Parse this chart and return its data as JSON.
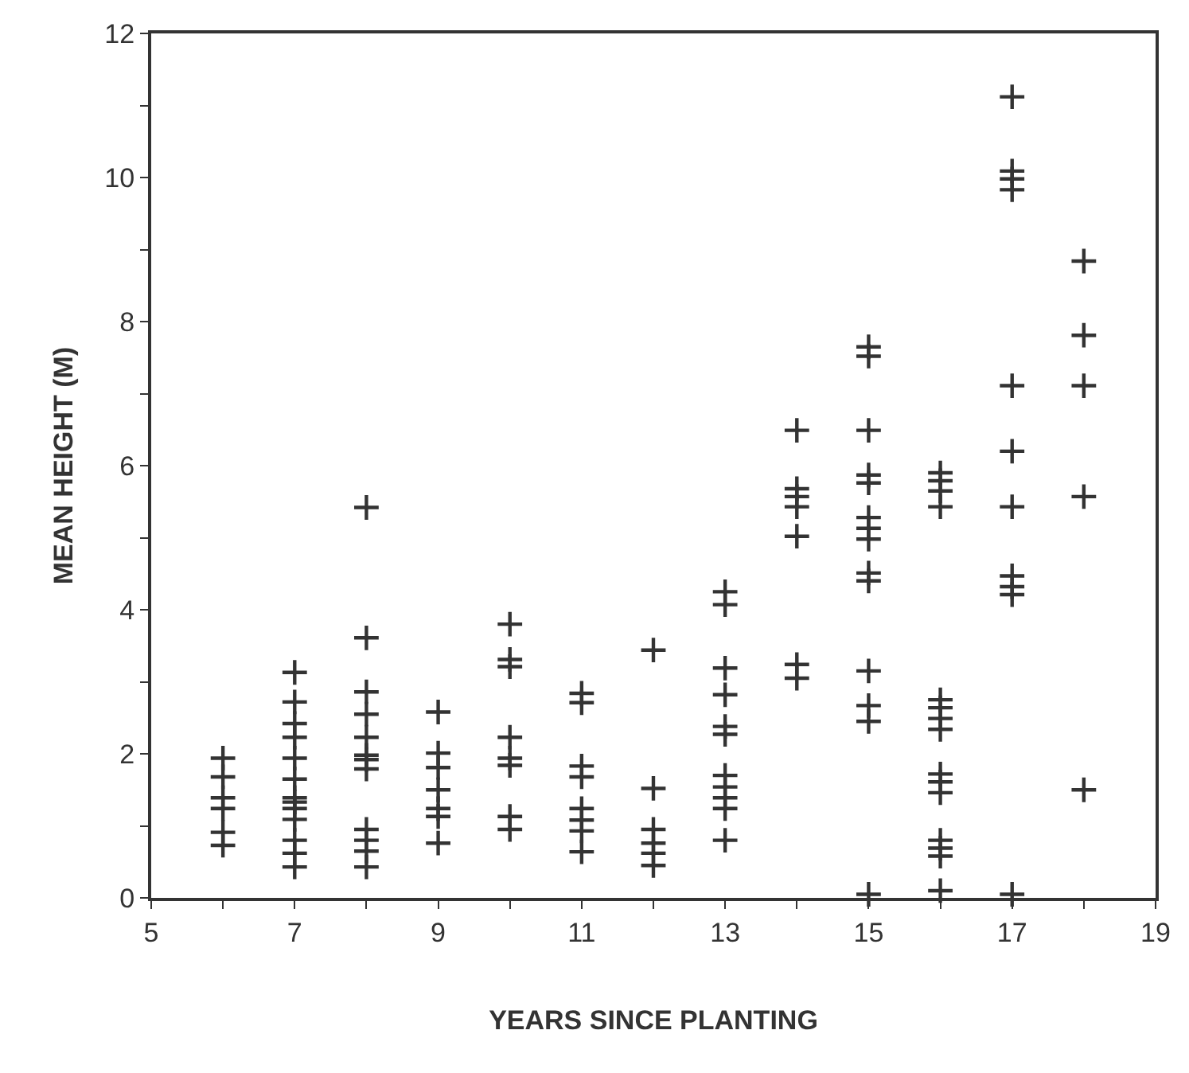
{
  "chart_data": {
    "type": "scatter",
    "xlabel": "YEARS SINCE PLANTING",
    "ylabel": "MEAN HEIGHT (M)",
    "xlim": [
      5,
      19
    ],
    "xticks": [
      5,
      {
        "value": 6,
        "label": null
      },
      7,
      {
        "value": 8,
        "label": null
      },
      9,
      {
        "value": 10,
        "label": null
      },
      11,
      {
        "value": 12,
        "label": null
      },
      13,
      {
        "value": 14,
        "label": null
      },
      15,
      {
        "value": 16,
        "label": null
      },
      17,
      {
        "value": 18,
        "label": null
      },
      19
    ],
    "ylim": [
      0,
      12
    ],
    "yticks": [
      0,
      {
        "value": 1,
        "label": null
      },
      2,
      {
        "value": 3,
        "label": null
      },
      4,
      {
        "value": 5,
        "label": null
      },
      6,
      {
        "value": 7,
        "label": null
      },
      8,
      {
        "value": 9,
        "label": null
      },
      10,
      {
        "value": 11,
        "label": null
      },
      12
    ],
    "legend": false,
    "marker": "cross",
    "series": [
      {
        "color": "#333333",
        "x": [
          6,
          6,
          6,
          6,
          6,
          6,
          7,
          7,
          7,
          7,
          7,
          7,
          7,
          7,
          7,
          7,
          7,
          7,
          7,
          8,
          8,
          8,
          8,
          8,
          8,
          8,
          8,
          8,
          8,
          8,
          8,
          9,
          9,
          9,
          9,
          9,
          9,
          9,
          10,
          10,
          10,
          10,
          10,
          10,
          10,
          10,
          11,
          11,
          11,
          11,
          11,
          11,
          11,
          11,
          12,
          12,
          12,
          12,
          12,
          12,
          13,
          13,
          13,
          13,
          13,
          13,
          13,
          13,
          13,
          13,
          13,
          14,
          14,
          14,
          14,
          14,
          14,
          14,
          15,
          15,
          15,
          15,
          15,
          15,
          15,
          15,
          15,
          15,
          15,
          15,
          15,
          15,
          16,
          16,
          16,
          16,
          16,
          16,
          16,
          16,
          16,
          16,
          16,
          16,
          16,
          16,
          16,
          17,
          17,
          17,
          17,
          17,
          17,
          17,
          17,
          17,
          17,
          17,
          18,
          18,
          18,
          18,
          18
        ],
        "values": [
          1.94,
          1.68,
          1.39,
          1.24,
          0.91,
          0.73,
          3.13,
          2.72,
          2.42,
          2.23,
          1.94,
          1.65,
          1.39,
          1.33,
          1.24,
          1.09,
          0.8,
          0.62,
          0.43,
          5.42,
          3.61,
          2.86,
          2.55,
          2.23,
          1.98,
          1.92,
          1.79,
          0.95,
          0.8,
          0.65,
          0.43,
          2.58,
          2.01,
          1.81,
          1.5,
          1.24,
          1.13,
          0.76,
          3.8,
          3.31,
          3.21,
          2.23,
          1.94,
          1.84,
          1.13,
          0.95,
          2.84,
          2.71,
          1.83,
          1.68,
          1.24,
          1.08,
          0.93,
          0.64,
          3.44,
          1.52,
          0.95,
          0.76,
          0.62,
          0.45,
          4.25,
          4.07,
          3.19,
          2.82,
          2.38,
          2.27,
          1.7,
          1.54,
          1.39,
          1.24,
          0.8,
          6.49,
          5.68,
          5.57,
          5.43,
          5.02,
          3.24,
          3.05,
          7.65,
          7.52,
          6.49,
          5.87,
          5.76,
          5.28,
          5.13,
          4.98,
          4.51,
          4.4,
          3.15,
          2.67,
          2.45,
          0.05,
          5.9,
          5.79,
          5.65,
          5.43,
          2.75,
          2.64,
          2.49,
          2.34,
          1.72,
          1.61,
          1.46,
          0.8,
          0.69,
          0.58,
          0.1,
          11.12,
          10.09,
          9.98,
          9.83,
          7.11,
          6.2,
          5.43,
          4.47,
          4.32,
          4.21,
          0.05,
          8.84,
          7.81,
          7.11,
          5.57,
          1.5
        ]
      }
    ]
  }
}
